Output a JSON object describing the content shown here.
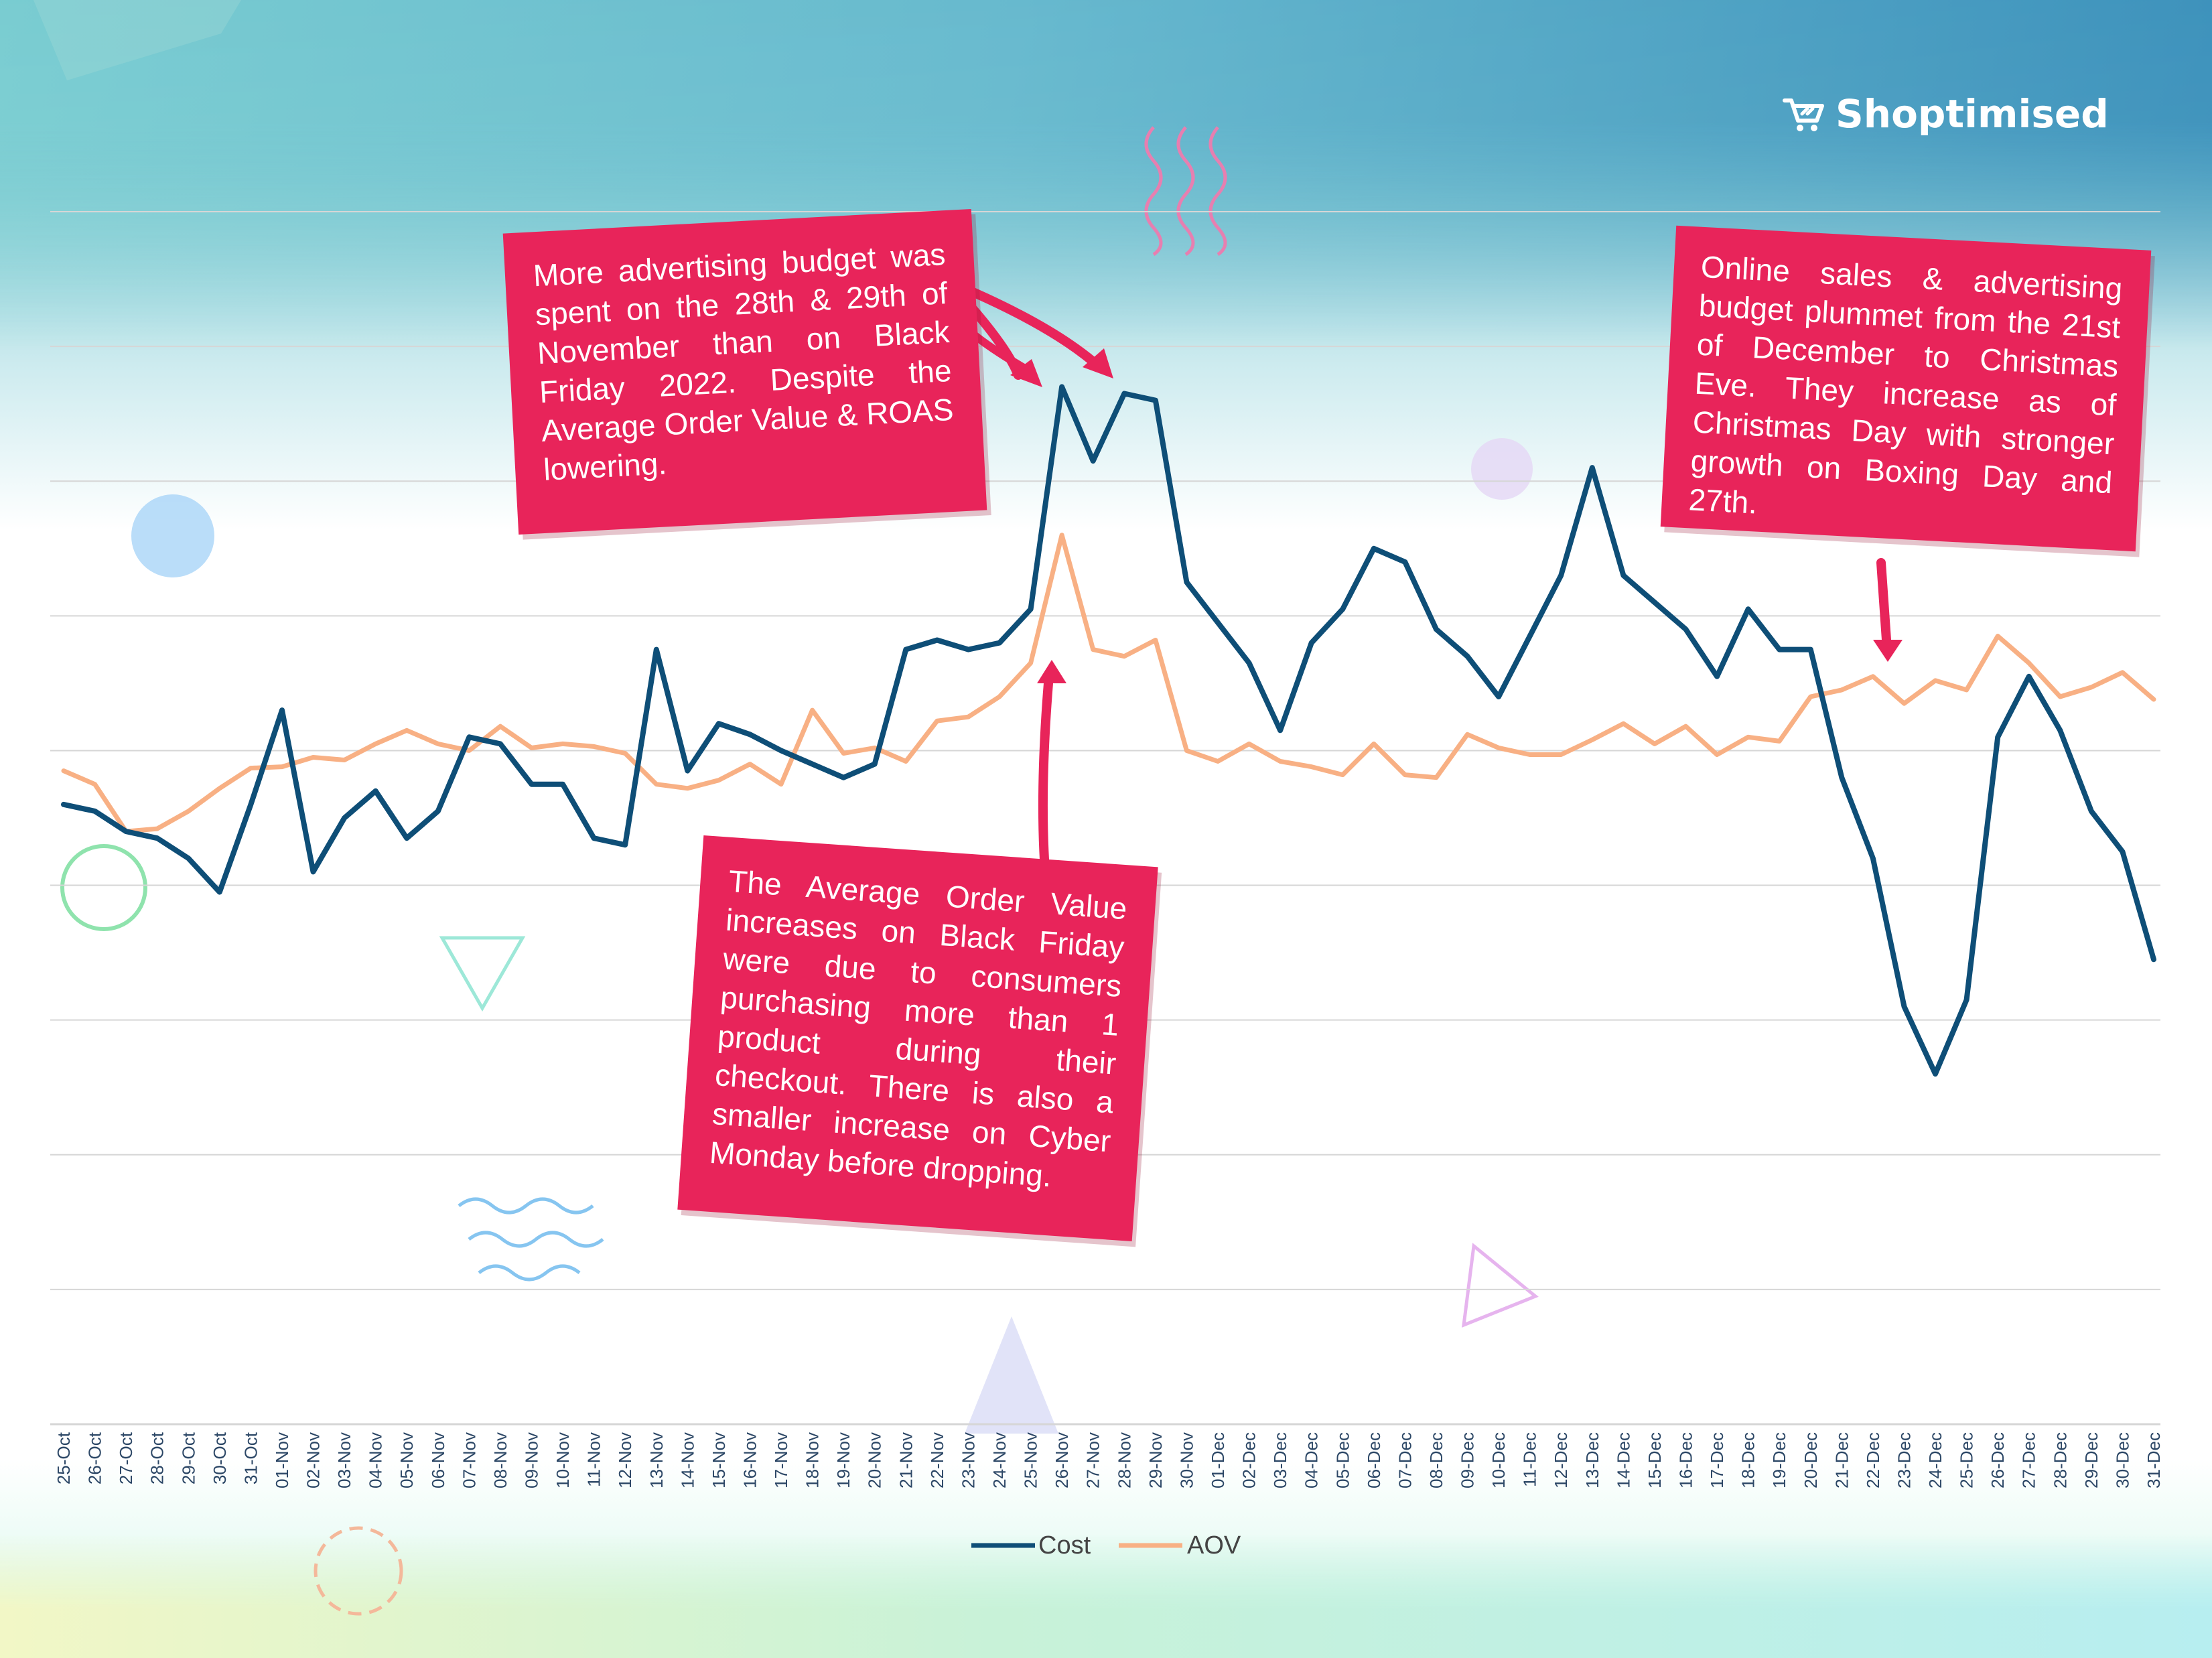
{
  "brand": {
    "name": "Shoptimised",
    "icon": "cart-icon"
  },
  "colors": {
    "cost": "#0e4e77",
    "aov": "#f8b084",
    "callout": "#e8245a",
    "grid": "#d6d6d6"
  },
  "callouts": {
    "left": "More advertising budget was spent on the 28th & 29th of November than on Black Friday 2022. Despite the Average Order Value & ROAS lowering.",
    "middle": "The Average Order Value increases on Black Friday were due to consumers purchasing more than 1 product during their checkout. There is also a smaller increase on Cyber Monday before dropping.",
    "right": "Online sales & advertising budget plummet from the 21st of December to Christmas Eve. They increase as of Christmas Day with stronger growth on Boxing Day and 27th."
  },
  "legend": [
    "Cost",
    "AOV"
  ],
  "chart_data": {
    "type": "line",
    "grid": true,
    "legend_position": "bottom",
    "categories": [
      "25-Oct",
      "26-Oct",
      "27-Oct",
      "28-Oct",
      "29-Oct",
      "30-Oct",
      "31-Oct",
      "01-Nov",
      "02-Nov",
      "03-Nov",
      "04-Nov",
      "05-Nov",
      "06-Nov",
      "07-Nov",
      "08-Nov",
      "09-Nov",
      "10-Nov",
      "11-Nov",
      "12-Nov",
      "13-Nov",
      "14-Nov",
      "15-Nov",
      "16-Nov",
      "17-Nov",
      "18-Nov",
      "19-Nov",
      "20-Nov",
      "21-Nov",
      "22-Nov",
      "23-Nov",
      "24-Nov",
      "25-Nov",
      "26-Nov",
      "27-Nov",
      "28-Nov",
      "29-Nov",
      "30-Nov",
      "01-Dec",
      "02-Dec",
      "03-Dec",
      "04-Dec",
      "05-Dec",
      "06-Dec",
      "07-Dec",
      "08-Dec",
      "09-Dec",
      "10-Dec",
      "11-Dec",
      "12-Dec",
      "13-Dec",
      "14-Dec",
      "15-Dec",
      "16-Dec",
      "17-Dec",
      "18-Dec",
      "19-Dec",
      "20-Dec",
      "21-Dec",
      "22-Dec",
      "23-Dec",
      "24-Dec",
      "25-Dec",
      "26-Dec",
      "27-Dec",
      "28-Dec",
      "29-Dec",
      "30-Dec",
      "31-Dec"
    ],
    "ylim": [
      0,
      9
    ],
    "series": [
      {
        "name": "Cost",
        "values": [
          4.6,
          4.55,
          4.4,
          4.35,
          4.2,
          3.95,
          4.6,
          5.3,
          4.1,
          4.5,
          4.7,
          4.35,
          4.55,
          5.1,
          5.05,
          4.75,
          4.75,
          4.35,
          4.3,
          5.75,
          4.85,
          5.2,
          5.12,
          5.0,
          4.9,
          4.8,
          4.9,
          5.75,
          5.82,
          5.75,
          5.8,
          6.05,
          7.7,
          7.15,
          7.65,
          7.6,
          6.25,
          5.95,
          5.65,
          5.15,
          5.8,
          6.05,
          6.5,
          6.4,
          5.9,
          5.7,
          5.4,
          5.85,
          6.3,
          7.1,
          6.3,
          6.1,
          5.9,
          5.55,
          6.05,
          5.75,
          5.75,
          4.8,
          4.2,
          3.1,
          2.6,
          3.15,
          5.1,
          5.55,
          5.15,
          4.55,
          4.25,
          3.45
        ]
      },
      {
        "name": "AOV",
        "values": [
          4.85,
          4.75,
          4.4,
          4.42,
          4.55,
          4.72,
          4.87,
          4.88,
          4.95,
          4.93,
          5.05,
          5.15,
          5.05,
          5.0,
          5.18,
          5.02,
          5.05,
          5.03,
          4.98,
          4.75,
          4.72,
          4.78,
          4.9,
          4.75,
          5.3,
          4.98,
          5.02,
          4.92,
          5.22,
          5.25,
          5.4,
          5.65,
          6.6,
          5.75,
          5.7,
          5.82,
          5.0,
          4.92,
          5.05,
          4.92,
          4.88,
          4.82,
          5.05,
          4.82,
          4.8,
          5.12,
          5.02,
          4.97,
          4.97,
          5.08,
          5.2,
          5.05,
          5.18,
          4.97,
          5.1,
          5.07,
          5.4,
          5.45,
          5.55,
          5.35,
          5.52,
          5.45,
          5.85,
          5.65,
          5.4,
          5.47,
          5.58,
          5.38
        ]
      }
    ]
  }
}
